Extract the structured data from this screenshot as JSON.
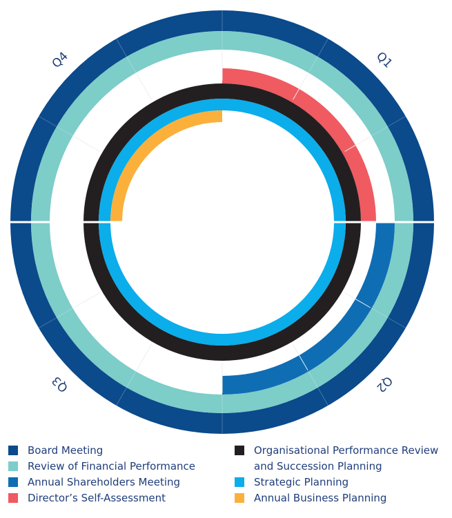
{
  "chart_data": {
    "type": "radial",
    "categories": [
      "Q1",
      "Q2",
      "Q3",
      "Q4"
    ],
    "series": [
      {
        "name": "Board Meeting",
        "color": "#0b4a8b",
        "values": [
          1,
          1,
          1,
          1
        ]
      },
      {
        "name": "Review of Financial Performance",
        "color": "#7dcdc9",
        "values": [
          1,
          1,
          1,
          1
        ]
      },
      {
        "name": "Annual Shareholders Meeting",
        "color": "#0f6db4",
        "values": [
          0,
          1,
          0,
          0
        ]
      },
      {
        "name": "Director’s Self-Assessment",
        "color": "#f05a61",
        "values": [
          1,
          0,
          0,
          0
        ]
      },
      {
        "name": "Organisational Performance Review and Succession Planning",
        "color": "#231f20",
        "values": [
          1,
          1,
          1,
          1
        ]
      },
      {
        "name": "Strategic Planning",
        "color": "#0badea",
        "values": [
          1,
          1,
          1,
          1
        ]
      },
      {
        "name": "Annual Business Planning",
        "color": "#fbb03b",
        "values": [
          0,
          0,
          0,
          1
        ]
      }
    ]
  }
}
